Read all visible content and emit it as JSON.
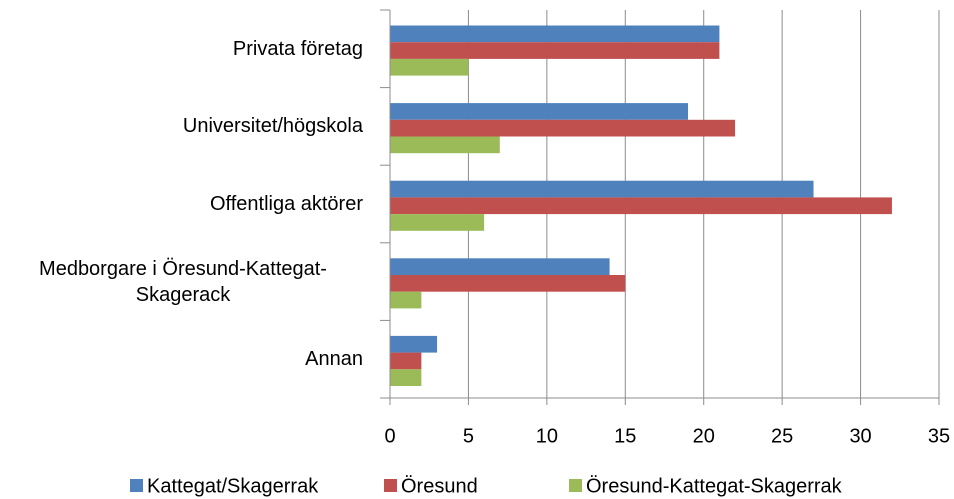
{
  "chart_data": {
    "type": "barh",
    "categories": [
      "Privata företag",
      "Universitet/högskola",
      "Offentliga aktörer",
      "Medborgare i Öresund-Kattegat-Skagerack",
      "Annan"
    ],
    "series": [
      {
        "name": "Kattegat/Skagerrak",
        "color": "#4f81bd",
        "values": [
          21,
          19,
          27,
          14,
          3
        ]
      },
      {
        "name": "Öresund",
        "color": "#c0504d",
        "values": [
          21,
          22,
          32,
          15,
          2
        ]
      },
      {
        "name": "Öresund-Kattegat-Skagerrak",
        "color": "#9bbb59",
        "values": [
          5,
          7,
          6,
          2,
          2
        ]
      }
    ],
    "xlim": [
      0,
      35
    ],
    "xticks": [
      0,
      5,
      10,
      15,
      20,
      25,
      30,
      35
    ],
    "grid": true,
    "legend": "bottom"
  }
}
